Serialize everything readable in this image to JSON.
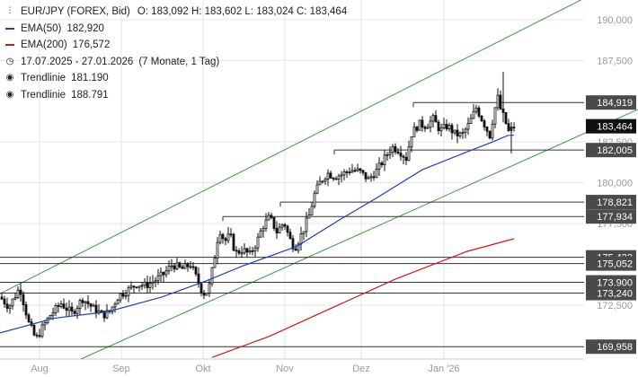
{
  "legend": {
    "title": "EUR/JPY (FOREX, Bid)",
    "ohlc": "O: 183,092  H: 183,602  L: 183,024  C: 183,464",
    "ema50": {
      "label": "EMA(50)",
      "value": "182,920",
      "color": "#1f3fbf"
    },
    "ema200": {
      "label": "EMA(200)",
      "value": "176,572",
      "color": "#d01818"
    },
    "period": "17.07.2025 - 27.01.2026",
    "period_note": "(7 Monate, 1 Tag)",
    "trend1": {
      "label": "Trendlinie",
      "value": "181.190"
    },
    "trend2": {
      "label": "Trendlinie",
      "value": "188.791"
    }
  },
  "chart_data": {
    "type": "candlestick",
    "title": "EUR/JPY (FOREX, Bid)",
    "y_ticks": [
      "190,000",
      "187,500",
      "182,500",
      "180,000",
      "177,500",
      "172,500"
    ],
    "x_ticks": [
      "Aug",
      "Sep",
      "Okt",
      "Nov",
      "Dez",
      "Jan '26"
    ],
    "ylim": [
      169.2,
      191.2
    ],
    "close_path": [
      [
        0,
        173.0
      ],
      [
        10,
        172.4
      ],
      [
        22,
        173.6
      ],
      [
        32,
        171.4
      ],
      [
        40,
        170.4
      ],
      [
        48,
        171.2
      ],
      [
        56,
        171.9
      ],
      [
        68,
        172.6
      ],
      [
        80,
        172.0
      ],
      [
        92,
        172.9
      ],
      [
        104,
        172.3
      ],
      [
        115,
        171.9
      ],
      [
        122,
        172.1
      ],
      [
        132,
        173.1
      ],
      [
        142,
        173.4
      ],
      [
        152,
        173.8
      ],
      [
        162,
        173.7
      ],
      [
        172,
        174.0
      ],
      [
        182,
        174.4
      ],
      [
        192,
        175.0
      ],
      [
        202,
        174.7
      ],
      [
        212,
        175.0
      ],
      [
        220,
        174.0
      ],
      [
        226,
        173.2
      ],
      [
        232,
        173.4
      ],
      [
        238,
        175.2
      ],
      [
        244,
        177.2
      ],
      [
        250,
        176.4
      ],
      [
        256,
        176.8
      ],
      [
        262,
        175.7
      ],
      [
        270,
        175.9
      ],
      [
        278,
        175.6
      ],
      [
        286,
        176.4
      ],
      [
        292,
        177.3
      ],
      [
        300,
        177.9
      ],
      [
        308,
        177.0
      ],
      [
        316,
        177.6
      ],
      [
        322,
        176.6
      ],
      [
        328,
        176.0
      ],
      [
        336,
        176.9
      ],
      [
        344,
        178.0
      ],
      [
        350,
        179.3
      ],
      [
        356,
        180.0
      ],
      [
        364,
        180.6
      ],
      [
        372,
        180.4
      ],
      [
        380,
        180.5
      ],
      [
        390,
        180.8
      ],
      [
        400,
        180.7
      ],
      [
        410,
        180.2
      ],
      [
        420,
        180.8
      ],
      [
        428,
        181.5
      ],
      [
        436,
        182.2
      ],
      [
        444,
        182.0
      ],
      [
        452,
        181.5
      ],
      [
        458,
        183.0
      ],
      [
        466,
        183.6
      ],
      [
        474,
        183.5
      ],
      [
        482,
        183.9
      ],
      [
        490,
        183.2
      ],
      [
        498,
        183.5
      ],
      [
        506,
        183.0
      ],
      [
        514,
        182.9
      ],
      [
        522,
        183.6
      ],
      [
        530,
        184.6
      ],
      [
        538,
        183.7
      ],
      [
        545,
        182.9
      ],
      [
        550,
        184.4
      ],
      [
        554,
        185.2
      ],
      [
        558,
        184.3
      ],
      [
        562,
        183.9
      ],
      [
        565,
        183.1
      ],
      [
        568,
        183.2
      ],
      [
        572,
        183.46
      ]
    ],
    "ema50_path": [
      [
        0,
        170.8
      ],
      [
        60,
        171.7
      ],
      [
        120,
        172.1
      ],
      [
        180,
        173.0
      ],
      [
        230,
        174.0
      ],
      [
        270,
        174.9
      ],
      [
        330,
        176.1
      ],
      [
        380,
        177.8
      ],
      [
        420,
        179.1
      ],
      [
        470,
        180.8
      ],
      [
        520,
        181.9
      ],
      [
        548,
        182.5
      ],
      [
        565,
        182.9
      ],
      [
        572,
        182.92
      ]
    ],
    "ema200_path": [
      [
        236,
        169.3
      ],
      [
        300,
        170.6
      ],
      [
        380,
        172.6
      ],
      [
        440,
        174.1
      ],
      [
        520,
        175.8
      ],
      [
        572,
        176.57
      ]
    ],
    "trendlines": [
      {
        "points": [
          [
            0,
            173.2
          ],
          [
            650,
            191.3
          ]
        ],
        "color": "#3f9a3f",
        "value": "188.791"
      },
      {
        "points": [
          [
            90,
            169.2
          ],
          [
            710,
            184.5
          ]
        ],
        "color": "#3f9a3f",
        "value": "181.190"
      }
    ],
    "levels": [
      {
        "value": 184.919,
        "label": "184,919",
        "x_start": 460,
        "highlight": false
      },
      {
        "value": 183.464,
        "label": "183,464",
        "x_start": null,
        "highlight": true
      },
      {
        "value": 182.005,
        "label": "182,005",
        "x_start": 372,
        "highlight": false
      },
      {
        "value": 178.821,
        "label": "178,821",
        "x_start": 312,
        "highlight": false
      },
      {
        "value": 177.934,
        "label": "177,934",
        "x_start": 248,
        "highlight": false
      },
      {
        "value": 175.433,
        "label": "175,433",
        "x_start": 0,
        "highlight": false
      },
      {
        "value": 175.052,
        "label": "175,052",
        "x_start": 0,
        "highlight": false
      },
      {
        "value": 173.9,
        "label": "173,900",
        "x_start": 0,
        "highlight": false
      },
      {
        "value": 173.24,
        "label": "173,240",
        "x_start": 0,
        "highlight": false
      },
      {
        "value": 169.958,
        "label": "169,958",
        "x_start": 0,
        "highlight": false
      }
    ],
    "colors": {
      "candle": "#111111",
      "grid": "#e6e6e6",
      "tag_bg": "#4a4a4a",
      "tag_hl": "#111111",
      "level": "#333333"
    }
  }
}
